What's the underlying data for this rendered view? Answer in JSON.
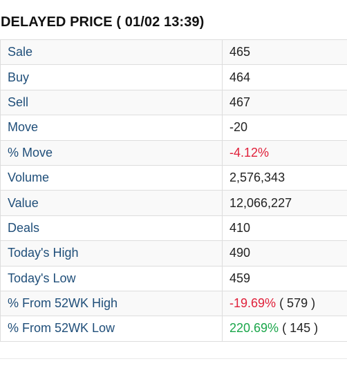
{
  "header": {
    "title": "DELAYED PRICE ( 01/02 13:39)"
  },
  "rows": [
    {
      "label": "Sale",
      "value": "465"
    },
    {
      "label": "Buy",
      "value": "464"
    },
    {
      "label": "Sell",
      "value": "467"
    },
    {
      "label": "Move",
      "value": "-20"
    },
    {
      "label": "% Move",
      "value": "-4.12%"
    },
    {
      "label": "Volume",
      "value": "2,576,343"
    },
    {
      "label": "Value",
      "value": "12,066,227"
    },
    {
      "label": "Deals",
      "value": "410"
    },
    {
      "label": "Today's High",
      "value": "490"
    },
    {
      "label": "Today's Low",
      "value": "459"
    },
    {
      "label": "% From 52WK High",
      "value": "-19.69%",
      "extra": "( 579 )"
    },
    {
      "label": "% From 52WK Low",
      "value": "220.69%",
      "extra": "( 145 )"
    }
  ],
  "colors": {
    "label": "#1f4e79",
    "negative": "#e0203a",
    "positive": "#1aa64a",
    "row_stripe": "#f9f9f9",
    "border": "#dddddd"
  }
}
